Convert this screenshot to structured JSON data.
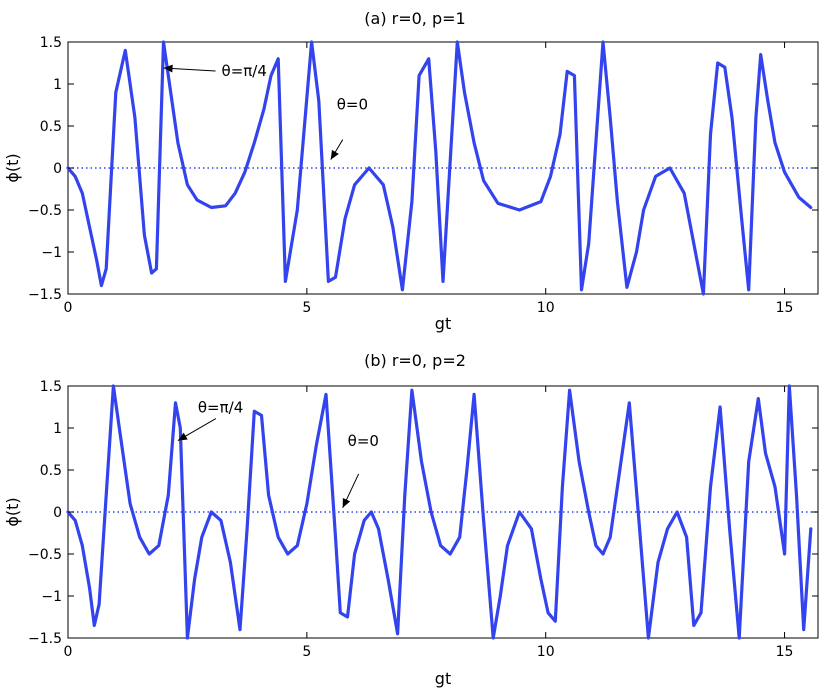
{
  "chart_data": [
    {
      "type": "line",
      "title": "(a) r=0, p=1",
      "xlabel": "gt",
      "ylabel": "ϕ(t)",
      "xlim": [
        0,
        15.7
      ],
      "ylim": [
        -1.5,
        1.5
      ],
      "xticks": [
        0,
        5,
        10,
        15
      ],
      "yticks": [
        -1.5,
        -1,
        -0.5,
        0,
        0.5,
        1,
        1.5
      ],
      "xtick_labels": [
        "0",
        "5",
        "10",
        "15"
      ],
      "ytick_labels": [
        "−1.5",
        "−1",
        "−0.5",
        "0",
        "0.5",
        "1",
        "1.5"
      ],
      "grid": false,
      "series": [
        {
          "style": "solid",
          "color": "#3344ee",
          "x": [
            0,
            0.15,
            0.3,
            0.45,
            0.6,
            0.7,
            0.8,
            1.0,
            1.2,
            1.4,
            1.6,
            1.75,
            1.85,
            2.0,
            2.15,
            2.3,
            2.5,
            2.7,
            3.0,
            3.3,
            3.5,
            3.7,
            3.9,
            4.1,
            4.25,
            4.4,
            4.55,
            4.8,
            5.1,
            5.25,
            5.45,
            5.6,
            5.8,
            6.0,
            6.3,
            6.6,
            6.8,
            7.0,
            7.2,
            7.35,
            7.55,
            7.7,
            7.85,
            8.15,
            8.3,
            8.5,
            8.7,
            9.0,
            9.45,
            9.9,
            10.1,
            10.3,
            10.45,
            10.6,
            10.75,
            10.9,
            11.2,
            11.35,
            11.5,
            11.7,
            11.9,
            12.05,
            12.3,
            12.6,
            12.9,
            13.1,
            13.3,
            13.45,
            13.6,
            13.75,
            13.9,
            14.1,
            14.25,
            14.4,
            14.5,
            14.65,
            14.8,
            15.0,
            15.3,
            15.55
          ],
          "y": [
            0,
            -0.1,
            -0.3,
            -0.7,
            -1.1,
            -1.4,
            -1.2,
            0.9,
            1.4,
            0.6,
            -0.8,
            -1.25,
            -1.2,
            1.5,
            0.9,
            0.3,
            -0.2,
            -0.38,
            -0.47,
            -0.45,
            -0.3,
            -0.05,
            0.3,
            0.7,
            1.1,
            1.3,
            -1.35,
            -0.5,
            1.5,
            0.8,
            -1.35,
            -1.3,
            -0.6,
            -0.2,
            0,
            -0.2,
            -0.7,
            -1.45,
            -0.4,
            1.1,
            1.3,
            0.2,
            -1.35,
            1.5,
            0.9,
            0.3,
            -0.15,
            -0.42,
            -0.5,
            -0.4,
            -0.1,
            0.4,
            1.15,
            1.1,
            -1.45,
            -0.9,
            1.5,
            0.6,
            -0.4,
            -1.42,
            -1.0,
            -0.5,
            -0.1,
            0,
            -0.3,
            -0.9,
            -1.5,
            0.4,
            1.25,
            1.2,
            0.6,
            -0.6,
            -1.45,
            0.6,
            1.35,
            0.8,
            0.3,
            -0.05,
            -0.35,
            -0.47
          ]
        },
        {
          "style": "dotted",
          "color": "#3344ee",
          "x": [
            0,
            15.7
          ],
          "y": [
            0,
            0
          ]
        }
      ],
      "annotations": [
        {
          "text": "θ=π/4",
          "x": 2.0,
          "y": 1.19
        },
        {
          "text": "θ=0",
          "x": 5.5,
          "y": 0.1
        }
      ]
    },
    {
      "type": "line",
      "title": "(b) r=0, p=2",
      "xlabel": "gt",
      "ylabel": "ϕ(t)",
      "xlim": [
        0,
        15.7
      ],
      "ylim": [
        -1.5,
        1.5
      ],
      "xticks": [
        0,
        5,
        10,
        15
      ],
      "yticks": [
        -1.5,
        -1,
        -0.5,
        0,
        0.5,
        1,
        1.5
      ],
      "xtick_labels": [
        "0",
        "5",
        "10",
        "15"
      ],
      "ytick_labels": [
        "−1.5",
        "−1",
        "−0.5",
        "0",
        "0.5",
        "1",
        "1.5"
      ],
      "grid": false,
      "series": [
        {
          "style": "solid",
          "color": "#3344ee",
          "x": [
            0,
            0.15,
            0.3,
            0.45,
            0.55,
            0.65,
            0.8,
            0.95,
            1.1,
            1.3,
            1.5,
            1.7,
            1.9,
            2.1,
            2.25,
            2.35,
            2.5,
            2.65,
            2.8,
            3.0,
            3.2,
            3.4,
            3.6,
            3.75,
            3.9,
            4.05,
            4.2,
            4.4,
            4.6,
            4.8,
            5.0,
            5.2,
            5.4,
            5.6,
            5.7,
            5.85,
            6.0,
            6.2,
            6.35,
            6.5,
            6.7,
            6.9,
            7.05,
            7.2,
            7.4,
            7.6,
            7.8,
            8.0,
            8.2,
            8.35,
            8.5,
            8.7,
            8.9,
            9.05,
            9.2,
            9.45,
            9.7,
            9.9,
            10.05,
            10.2,
            10.35,
            10.5,
            10.7,
            10.9,
            11.05,
            11.2,
            11.35,
            11.55,
            11.75,
            11.95,
            12.15,
            12.35,
            12.55,
            12.75,
            12.95,
            13.1,
            13.25,
            13.45,
            13.65,
            13.85,
            14.05,
            14.25,
            14.45,
            14.6,
            14.8,
            15.0,
            15.1,
            15.25,
            15.4,
            15.55
          ],
          "y": [
            0,
            -0.1,
            -0.4,
            -0.9,
            -1.35,
            -1.1,
            0.2,
            1.5,
            0.9,
            0.1,
            -0.3,
            -0.5,
            -0.4,
            0.2,
            1.3,
            1.0,
            -1.5,
            -0.8,
            -0.3,
            0,
            -0.1,
            -0.6,
            -1.4,
            -0.2,
            1.2,
            1.15,
            0.2,
            -0.3,
            -0.5,
            -0.4,
            0.1,
            0.8,
            1.4,
            -0.3,
            -1.2,
            -1.25,
            -0.5,
            -0.1,
            0,
            -0.2,
            -0.8,
            -1.45,
            0.2,
            1.45,
            0.6,
            0,
            -0.4,
            -0.5,
            -0.3,
            0.5,
            1.4,
            -0.1,
            -1.5,
            -1.0,
            -0.4,
            0,
            -0.2,
            -0.8,
            -1.2,
            -1.3,
            0.3,
            1.45,
            0.6,
            0,
            -0.4,
            -0.5,
            -0.3,
            0.5,
            1.3,
            -0.1,
            -1.5,
            -0.6,
            -0.2,
            0,
            -0.3,
            -1.35,
            -1.2,
            0.3,
            1.25,
            -0.2,
            -1.5,
            0.6,
            1.35,
            0.7,
            0.3,
            -0.5,
            1.5,
            0.2,
            -1.4,
            -0.2
          ]
        },
        {
          "style": "dotted",
          "color": "#3344ee",
          "x": [
            0,
            15.7
          ],
          "y": [
            0,
            0
          ]
        }
      ],
      "annotations": [
        {
          "text": "θ=π/4",
          "x": 2.3,
          "y": 0.85
        },
        {
          "text": "θ=0",
          "x": 5.75,
          "y": 0.05
        }
      ]
    }
  ]
}
